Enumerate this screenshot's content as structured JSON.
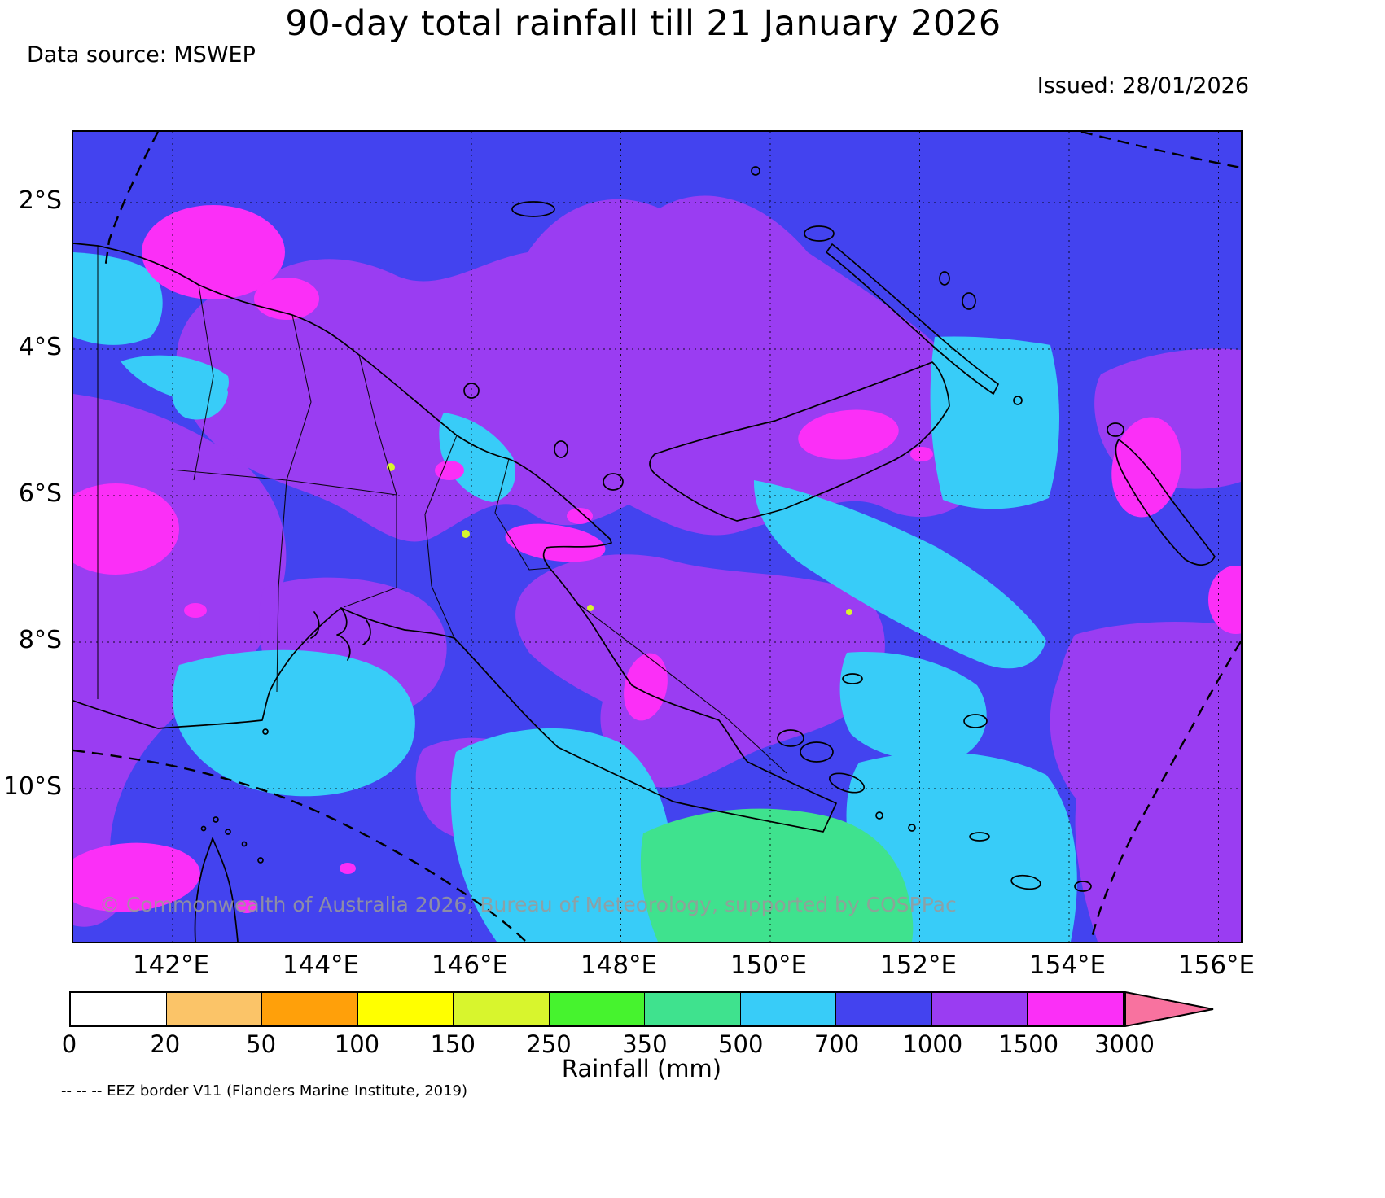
{
  "header": {
    "title": "90-day total rainfall till 21 January 2026",
    "data_source": "Data source: MSWEP",
    "issued": "Issued: 28/01/2026"
  },
  "map": {
    "lat_labels": [
      "2°S",
      "4°S",
      "6°S",
      "8°S",
      "10°S"
    ],
    "lon_labels": [
      "142°E",
      "144°E",
      "146°E",
      "148°E",
      "150°E",
      "152°E",
      "154°E",
      "156°E"
    ],
    "copyright": "© Commonwealth of Australia 2026, Bureau of Meteorology, supported by COSPPac"
  },
  "colorbar": {
    "label": "Rainfall (mm)",
    "tick_labels": [
      "0",
      "20",
      "50",
      "100",
      "150",
      "250",
      "350",
      "500",
      "700",
      "1000",
      "1500",
      "3000"
    ],
    "segment_colors": [
      "#ffffff",
      "#fbc468",
      "#ffa00a",
      "#ffff00",
      "#d8f52d",
      "#46f32e",
      "#3fe28e",
      "#38ccf8",
      "#4343ef",
      "#9a3df2",
      "#fb2ff7"
    ],
    "arrow_color": "#f8729f"
  },
  "footer": {
    "eez_note": "-- -- -- EEZ border V11 (Flanders Marine Institute, 2019)"
  }
}
